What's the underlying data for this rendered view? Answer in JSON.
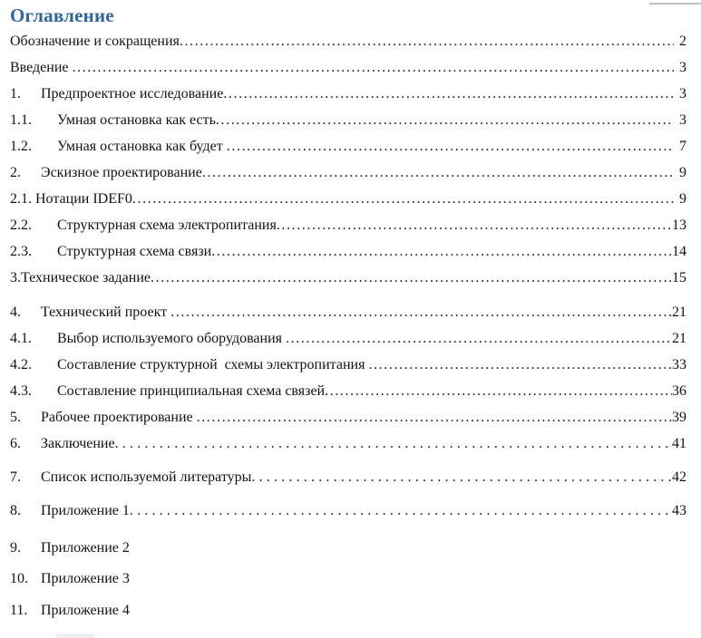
{
  "page": {
    "title": "Оглавление",
    "title_color": "#31659E"
  },
  "toc": {
    "entries": [
      {
        "num": "",
        "text": "Обозначение и сокращения",
        "page": "2",
        "level": "plain",
        "leader": "dots"
      },
      {
        "num": "",
        "text": "Введение ",
        "page": "3",
        "level": "plain",
        "leader": "dots"
      },
      {
        "num": "1.",
        "text": "Предпроектное исследование",
        "page": "3",
        "level": "l1",
        "leader": "dots"
      },
      {
        "num": "1.1.",
        "text": "Умная остановка как есть",
        "page": "3",
        "level": "l2",
        "leader": "dots"
      },
      {
        "num": "1.2.",
        "text": "Умная остановка как будет ",
        "page": "7",
        "level": "l2",
        "leader": "dots"
      },
      {
        "num": "2.",
        "text": "Эскизное проектирование",
        "page": "9",
        "level": "l1",
        "leader": "dots"
      },
      {
        "num": "2.1.",
        "text": "Нотации IDEF0",
        "page": "9",
        "level": "inline",
        "leader": "dots"
      },
      {
        "num": "2.2.",
        "text": "Структурная схема электропитания",
        "page": "13",
        "level": "l2",
        "leader": "dots"
      },
      {
        "num": "2.3.",
        "text": "Структурная схема связи",
        "page": "14",
        "level": "l2",
        "leader": "dots"
      },
      {
        "num": "",
        "text": "3.Техническое задание",
        "page": "15",
        "level": "plain",
        "leader": "dots"
      },
      {
        "num": "4.",
        "text": "Технический проект ",
        "page": "21",
        "level": "l1",
        "leader": "dots"
      },
      {
        "num": "4.1.",
        "text": "Выбор используемого оборудования ",
        "page": "21",
        "level": "l2",
        "leader": "dots"
      },
      {
        "num": "4.2.",
        "text": "Составление структурной  схемы электропитания ",
        "page": "33",
        "level": "l2",
        "leader": "dots"
      },
      {
        "num": "4.3.",
        "text": "Составление принципиальная схема связей",
        "page": "36",
        "level": "l2",
        "leader": "dots"
      },
      {
        "num": "5.",
        "text": "Рабочее проектирование ",
        "page": "39",
        "level": "l1",
        "leader": "dots"
      },
      {
        "num": "6.",
        "text": "Заключение",
        "page": "41",
        "level": "l1",
        "leader": "wide"
      },
      {
        "num": "7.",
        "text": "Список используемой литературы",
        "page": "42",
        "level": "l1",
        "leader": "wide"
      },
      {
        "num": "8.",
        "text": "Приложение 1",
        "page": "43",
        "level": "l1",
        "leader": "wide"
      },
      {
        "num": "9.",
        "text": "Приложение 2",
        "page": "",
        "level": "l1",
        "leader": "none"
      },
      {
        "num": "10.",
        "text": "Приложение 3",
        "page": "",
        "level": "l1",
        "leader": "none"
      },
      {
        "num": "11.",
        "text": "Приложение 4",
        "page": "",
        "level": "l1",
        "leader": "none"
      }
    ]
  }
}
